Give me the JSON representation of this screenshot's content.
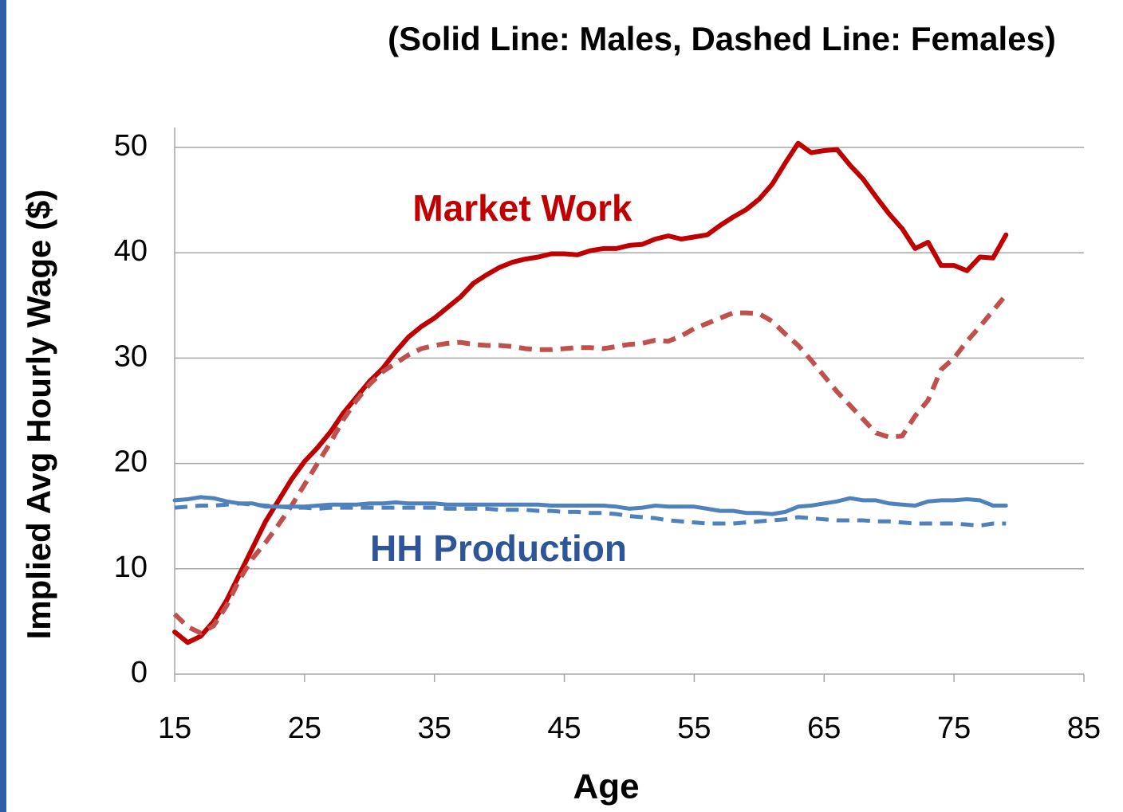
{
  "chart_data": {
    "type": "line",
    "title": "(Solid Line: Males, Dashed Line: Females)",
    "xlabel": "Age",
    "ylabel": "Implied Avg Hourly Wage ($)",
    "annotations": [
      "Market Work",
      "HH Production"
    ],
    "x": [
      15,
      16,
      17,
      18,
      19,
      20,
      21,
      22,
      23,
      24,
      25,
      26,
      27,
      28,
      29,
      30,
      31,
      32,
      33,
      34,
      35,
      36,
      37,
      38,
      39,
      40,
      41,
      42,
      43,
      44,
      45,
      46,
      47,
      48,
      49,
      50,
      51,
      52,
      53,
      54,
      55,
      56,
      57,
      58,
      59,
      60,
      61,
      62,
      63,
      64,
      65,
      66,
      67,
      68,
      69,
      70,
      71,
      72,
      73,
      74,
      75,
      76,
      77,
      78,
      79
    ],
    "series": [
      {
        "color": "#c00000",
        "dash": false,
        "values": [
          4,
          3,
          3.6,
          5,
          7,
          9.5,
          12,
          14.5,
          16.5,
          18.5,
          20.2,
          21.5,
          23,
          24.8,
          26.3,
          27.8,
          29,
          30.6,
          32,
          33,
          33.8,
          34.8,
          35.8,
          37.1,
          37.9,
          38.6,
          39.1,
          39.4,
          39.6,
          39.9,
          39.9,
          39.8,
          40.2,
          40.4,
          40.4,
          40.7,
          40.8,
          41.3,
          41.6,
          41.3,
          41.5,
          41.7,
          42.6,
          43.4,
          44.1,
          45.1,
          46.5,
          48.5,
          50.4,
          49.5,
          49.7,
          49.8,
          48.3,
          47,
          45.3,
          43.7,
          42.3,
          40.4,
          41,
          38.8,
          38.8,
          38.3,
          39.6,
          39.5,
          41.7
        ]
      },
      {
        "color": "#c0504d",
        "dash": true,
        "values": [
          5.7,
          4.5,
          3.9,
          4.6,
          6.5,
          9,
          11,
          12.5,
          14.2,
          16,
          18,
          20,
          22,
          24.2,
          26,
          27.5,
          28.7,
          29.5,
          30.3,
          30.9,
          31.2,
          31.4,
          31.5,
          31.3,
          31.2,
          31.2,
          31.1,
          30.9,
          30.8,
          30.8,
          30.9,
          31,
          31,
          30.9,
          31.1,
          31.3,
          31.4,
          31.7,
          31.6,
          32.1,
          32.8,
          33.3,
          33.8,
          34.3,
          34.3,
          34.2,
          33.5,
          32.3,
          31.2,
          29.8,
          28.3,
          26.8,
          25.5,
          24.2,
          22.9,
          22.5,
          22.6,
          24.5,
          26,
          28.9,
          30,
          31.6,
          33,
          34.5,
          36
        ]
      },
      {
        "color": "#4f81bd",
        "dash": false,
        "values": [
          16.5,
          16.6,
          16.8,
          16.7,
          16.4,
          16.2,
          16.2,
          15.9,
          15.9,
          15.9,
          15.9,
          16,
          16.1,
          16.1,
          16.1,
          16.2,
          16.2,
          16.3,
          16.2,
          16.2,
          16.2,
          16.1,
          16.1,
          16.1,
          16.1,
          16.1,
          16.1,
          16.1,
          16.1,
          16,
          16,
          16,
          16,
          16,
          15.9,
          15.7,
          15.8,
          16,
          15.9,
          15.9,
          15.9,
          15.7,
          15.5,
          15.5,
          15.3,
          15.3,
          15.2,
          15.4,
          15.9,
          16,
          16.2,
          16.4,
          16.7,
          16.5,
          16.5,
          16.2,
          16.1,
          16,
          16.4,
          16.5,
          16.5,
          16.6,
          16.5,
          16,
          16
        ]
      },
      {
        "color": "#4f81bd",
        "dash": true,
        "values": [
          15.8,
          15.9,
          16,
          16,
          16.1,
          16.2,
          16.1,
          16,
          15.9,
          15.8,
          15.8,
          15.7,
          15.8,
          15.8,
          15.8,
          15.8,
          15.8,
          15.8,
          15.8,
          15.8,
          15.8,
          15.7,
          15.7,
          15.7,
          15.7,
          15.6,
          15.6,
          15.6,
          15.5,
          15.5,
          15.4,
          15.4,
          15.3,
          15.3,
          15.2,
          15,
          14.9,
          14.8,
          14.6,
          14.5,
          14.4,
          14.3,
          14.3,
          14.3,
          14.4,
          14.5,
          14.6,
          14.7,
          14.9,
          14.8,
          14.7,
          14.6,
          14.6,
          14.6,
          14.5,
          14.5,
          14.4,
          14.3,
          14.3,
          14.3,
          14.3,
          14.2,
          14.1,
          14.3,
          14.3
        ]
      }
    ],
    "xlim": [
      15,
      85
    ],
    "xticks": [
      15,
      25,
      35,
      45,
      55,
      65,
      75,
      85
    ],
    "ylim": [
      0,
      50
    ],
    "yticks": [
      0,
      10,
      20,
      30,
      40,
      50
    ],
    "grid": true
  }
}
